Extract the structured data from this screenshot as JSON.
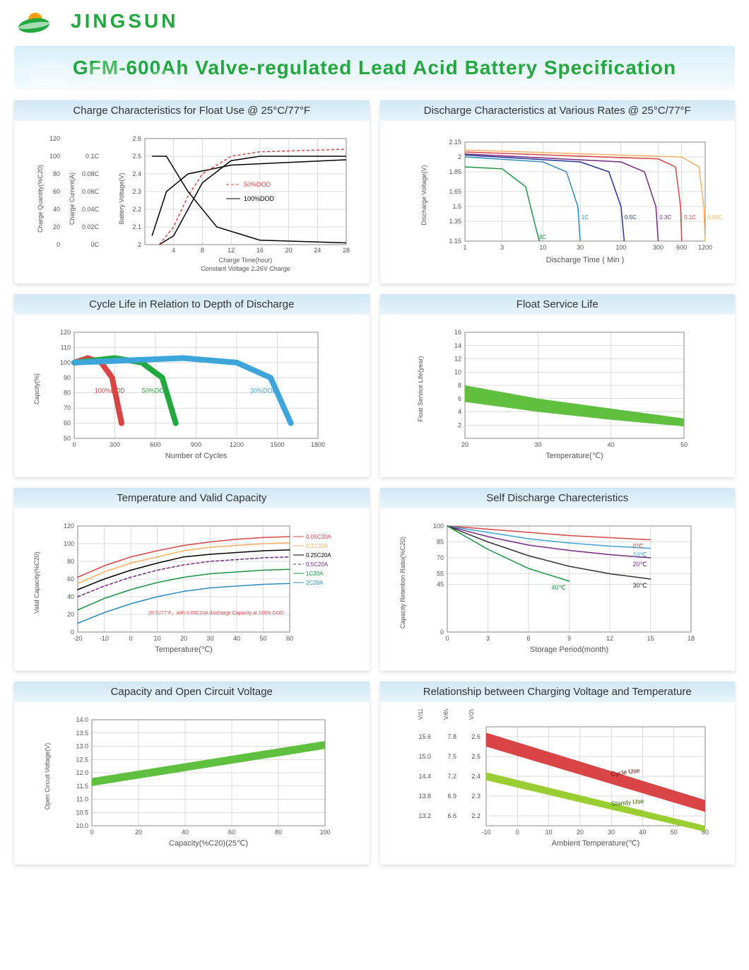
{
  "brand": "JINGSUN",
  "brand_color": "#22a83f",
  "title": "GFM-600Ah Valve-regulated Lead Acid Battery Specification",
  "title_color": "#22a83f",
  "banner_bg": "#d4f0f9",
  "panels": {
    "charge_char": {
      "title": "Charge Characteristics for Float Use @ 25°C/77°F",
      "type": "multi-axis-line",
      "x_label": "Charge Time(hour)",
      "x_sublabel": "Constant Voltage 2.26V Charge",
      "x_ticks": [
        4,
        8,
        12,
        16,
        20,
        24,
        28
      ],
      "y1_label": "Charge Quantity(%C20)",
      "y1_ticks": [
        0,
        20,
        40,
        60,
        80,
        100,
        120
      ],
      "y2_label": "Charge Current(A)",
      "y2_ticks": [
        "0C",
        "0.02C",
        "0.04C",
        "0.06C",
        "0.08C",
        "0.1C"
      ],
      "y3_label": "Battery Voltage(V)",
      "y3_ticks": [
        2.0,
        2.1,
        2.2,
        2.3,
        2.4,
        2.5,
        2.6
      ],
      "legend": [
        "50%DOD",
        "100%DOD"
      ],
      "legend_colors": [
        "#d94545",
        "#000000"
      ],
      "line_50dod_dash": "4,3",
      "curves": {
        "quantity_100": [
          [
            2,
            0
          ],
          [
            4,
            10
          ],
          [
            6,
            40
          ],
          [
            8,
            70
          ],
          [
            12,
            95
          ],
          [
            16,
            100
          ],
          [
            28,
            100
          ]
        ],
        "quantity_50": [
          [
            2,
            0
          ],
          [
            4,
            20
          ],
          [
            6,
            55
          ],
          [
            8,
            80
          ],
          [
            12,
            100
          ],
          [
            16,
            105
          ],
          [
            28,
            108
          ]
        ],
        "voltage_100": [
          [
            1,
            2.05
          ],
          [
            3,
            2.3
          ],
          [
            6,
            2.4
          ],
          [
            12,
            2.45
          ],
          [
            28,
            2.48
          ]
        ],
        "current_100": [
          [
            1,
            0.1
          ],
          [
            3,
            0.1
          ],
          [
            6,
            0.06
          ],
          [
            10,
            0.02
          ],
          [
            16,
            0.005
          ],
          [
            28,
            0.002
          ]
        ]
      }
    },
    "discharge_char": {
      "title": "Discharge Characteristics at Various Rates @ 25°C/77°F",
      "type": "line",
      "x_label": "Discharge Time ( Min )",
      "x_ticks": [
        1,
        3,
        10,
        30,
        100,
        300,
        600,
        1200
      ],
      "x_scale": "log",
      "y_label": "Discharge Voltage(V)",
      "y_ticks": [
        1.15,
        1.35,
        1.5,
        1.65,
        1.85,
        2.0,
        2.15
      ],
      "series": [
        {
          "label": "3C",
          "color": "#1a9641",
          "data": [
            [
              1,
              1.9
            ],
            [
              3,
              1.88
            ],
            [
              6,
              1.7
            ],
            [
              8,
              1.3
            ],
            [
              9,
              1.15
            ]
          ]
        },
        {
          "label": "1C",
          "color": "#2b8cbe",
          "data": [
            [
              1,
              2.0
            ],
            [
              10,
              1.95
            ],
            [
              20,
              1.85
            ],
            [
              28,
              1.5
            ],
            [
              30,
              1.15
            ]
          ]
        },
        {
          "label": "0.5C",
          "color": "#253494",
          "data": [
            [
              1,
              2.02
            ],
            [
              30,
              1.95
            ],
            [
              70,
              1.85
            ],
            [
              100,
              1.5
            ],
            [
              110,
              1.15
            ]
          ]
        },
        {
          "label": "0.3C",
          "color": "#762a83",
          "data": [
            [
              1,
              2.03
            ],
            [
              100,
              1.95
            ],
            [
              200,
              1.85
            ],
            [
              280,
              1.5
            ],
            [
              300,
              1.15
            ]
          ]
        },
        {
          "label": "0.1C",
          "color": "#d94545",
          "data": [
            [
              1,
              2.05
            ],
            [
              300,
              1.98
            ],
            [
              500,
              1.9
            ],
            [
              580,
              1.5
            ],
            [
              600,
              1.15
            ]
          ]
        },
        {
          "label": "0.05C",
          "color": "#fdae61",
          "data": [
            [
              1,
              2.07
            ],
            [
              600,
              2.0
            ],
            [
              1000,
              1.9
            ],
            [
              1150,
              1.5
            ],
            [
              1200,
              1.15
            ]
          ]
        }
      ]
    },
    "cycle_life": {
      "title": "Cycle  Life in Relation to Depth of Discharge",
      "type": "line",
      "x_label": "Number of Cycles",
      "x_ticks": [
        0,
        300,
        600,
        900,
        1200,
        1500,
        1800
      ],
      "y_label": "Capcity(%)",
      "y_ticks": [
        50,
        60,
        70,
        80,
        90,
        100,
        110,
        120
      ],
      "series": [
        {
          "label": "100%DOD",
          "color": "#d94545",
          "width": 8,
          "data": [
            [
              0,
              100
            ],
            [
              100,
              103
            ],
            [
              200,
              100
            ],
            [
              280,
              90
            ],
            [
              350,
              60
            ]
          ]
        },
        {
          "label": "50%DOD",
          "color": "#22a83f",
          "width": 8,
          "data": [
            [
              0,
              100
            ],
            [
              300,
              103
            ],
            [
              500,
              100
            ],
            [
              650,
              90
            ],
            [
              750,
              60
            ]
          ]
        },
        {
          "label": "30%DOD",
          "color": "#3da5d9",
          "width": 8,
          "data": [
            [
              0,
              100
            ],
            [
              800,
              103
            ],
            [
              1200,
              100
            ],
            [
              1450,
              90
            ],
            [
              1600,
              60
            ]
          ]
        }
      ]
    },
    "float_life": {
      "title": "Float Service Life",
      "type": "area",
      "x_label": "Temperature(℃)",
      "x_ticks": [
        20,
        30,
        40,
        50
      ],
      "y_label": "Float Service Life(year)",
      "y_ticks": [
        2,
        4,
        6,
        8,
        10,
        12,
        14,
        16
      ],
      "band_color": "#5fbf3f",
      "band_upper": [
        [
          20,
          8
        ],
        [
          30,
          6
        ],
        [
          40,
          4.5
        ],
        [
          50,
          3
        ]
      ],
      "band_lower": [
        [
          20,
          5.5
        ],
        [
          30,
          4
        ],
        [
          40,
          2.8
        ],
        [
          50,
          1.8
        ]
      ]
    },
    "temp_capacity": {
      "title": "Temperature and Valid Capacity",
      "type": "line",
      "x_label": "Temperature(℃)",
      "x_ticks": [
        -20,
        -10,
        0,
        10,
        20,
        30,
        40,
        50,
        60
      ],
      "y_label": "Valid Capacity(%C20)",
      "y_ticks": [
        0,
        20,
        40,
        60,
        80,
        100,
        120
      ],
      "note": "25°C/77°F，with 0.05C20A discharge Capacity at 100% DOD",
      "note_color": "#d94545",
      "series": [
        {
          "label": "0.05C20A",
          "color": "#d94545",
          "data": [
            [
              -20,
              62
            ],
            [
              -10,
              75
            ],
            [
              0,
              85
            ],
            [
              10,
              92
            ],
            [
              20,
              98
            ],
            [
              30,
              102
            ],
            [
              40,
              105
            ],
            [
              50,
              107
            ],
            [
              60,
              108
            ]
          ]
        },
        {
          "label": "0.1C20A",
          "color": "#fdae61",
          "data": [
            [
              -20,
              55
            ],
            [
              -10,
              68
            ],
            [
              0,
              78
            ],
            [
              10,
              85
            ],
            [
              20,
              92
            ],
            [
              30,
              96
            ],
            [
              40,
              98
            ],
            [
              50,
              100
            ],
            [
              60,
              101
            ]
          ]
        },
        {
          "label": "0.25C20A",
          "color": "#000",
          "data": [
            [
              -20,
              48
            ],
            [
              -10,
              60
            ],
            [
              0,
              70
            ],
            [
              10,
              78
            ],
            [
              20,
              85
            ],
            [
              30,
              88
            ],
            [
              40,
              90
            ],
            [
              50,
              92
            ],
            [
              60,
              93
            ]
          ]
        },
        {
          "label": "0.5C20A",
          "color": "#762a83",
          "dash": "4,3",
          "data": [
            [
              -20,
              40
            ],
            [
              -10,
              52
            ],
            [
              0,
              62
            ],
            [
              10,
              70
            ],
            [
              20,
              76
            ],
            [
              30,
              80
            ],
            [
              40,
              82
            ],
            [
              50,
              84
            ],
            [
              60,
              85
            ]
          ]
        },
        {
          "label": "1C20A",
          "color": "#1a9641",
          "data": [
            [
              -20,
              25
            ],
            [
              -10,
              38
            ],
            [
              0,
              48
            ],
            [
              10,
              56
            ],
            [
              20,
              62
            ],
            [
              30,
              66
            ],
            [
              40,
              68
            ],
            [
              50,
              70
            ],
            [
              60,
              71
            ]
          ]
        },
        {
          "label": "2C20A",
          "color": "#2b8cbe",
          "data": [
            [
              -20,
              10
            ],
            [
              -10,
              22
            ],
            [
              0,
              32
            ],
            [
              10,
              40
            ],
            [
              20,
              46
            ],
            [
              30,
              50
            ],
            [
              40,
              52
            ],
            [
              50,
              54
            ],
            [
              60,
              55
            ]
          ]
        }
      ]
    },
    "self_discharge": {
      "title": "Self Discharge Charecteristics",
      "type": "line",
      "x_label": "Storage Period(month)",
      "x_ticks": [
        0,
        3,
        6,
        9,
        12,
        15,
        18
      ],
      "y_label": "Capacity Retention Ratio(%C20)",
      "y_ticks": [
        0,
        45,
        55,
        70,
        85,
        100
      ],
      "series": [
        {
          "label": "0℃",
          "color": "#d94545",
          "data": [
            [
              0,
              100
            ],
            [
              3,
              97
            ],
            [
              6,
              94
            ],
            [
              9,
              91
            ],
            [
              12,
              89
            ],
            [
              15,
              87
            ]
          ]
        },
        {
          "label": "10℃",
          "color": "#3da5d9",
          "data": [
            [
              0,
              100
            ],
            [
              3,
              94
            ],
            [
              6,
              88
            ],
            [
              9,
              84
            ],
            [
              12,
              81
            ],
            [
              15,
              79
            ]
          ]
        },
        {
          "label": "20℃",
          "color": "#762a83",
          "data": [
            [
              0,
              100
            ],
            [
              3,
              90
            ],
            [
              6,
              82
            ],
            [
              9,
              77
            ],
            [
              12,
              73
            ],
            [
              15,
              70
            ]
          ]
        },
        {
          "label": "30℃",
          "color": "#333",
          "data": [
            [
              0,
              100
            ],
            [
              3,
              85
            ],
            [
              6,
              72
            ],
            [
              9,
              62
            ],
            [
              12,
              55
            ],
            [
              15,
              50
            ]
          ]
        },
        {
          "label": "40℃",
          "color": "#1a9641",
          "data": [
            [
              0,
              100
            ],
            [
              3,
              78
            ],
            [
              6,
              60
            ],
            [
              9,
              48
            ]
          ]
        }
      ]
    },
    "capacity_ocv": {
      "title": "Capacity and Open Circuit Voltage",
      "type": "area",
      "x_label": "Capacity(%C20)(25℃)",
      "x_ticks": [
        0,
        20,
        40,
        60,
        80,
        100
      ],
      "y_label": "Open Circuit Voltage(V)",
      "y_ticks": [
        10.0,
        10.5,
        11.0,
        11.5,
        12.0,
        12.5,
        13.0,
        13.5,
        14.0
      ],
      "band_color": "#5fbf3f",
      "band_upper": [
        [
          0,
          11.8
        ],
        [
          100,
          13.2
        ]
      ],
      "band_lower": [
        [
          0,
          11.5
        ],
        [
          100,
          12.9
        ]
      ]
    },
    "charge_voltage_temp": {
      "title": "Relationship between Charging Voltage and Temperature",
      "type": "multi-band",
      "x_label": "Ambient Temperature(℃)",
      "x_ticks": [
        -10,
        0,
        10,
        20,
        30,
        40,
        50,
        60
      ],
      "y_labels": [
        "V/12V",
        "V/6V",
        "V/2V"
      ],
      "y1_ticks": [
        13.2,
        13.8,
        14.4,
        15.0,
        15.6
      ],
      "y2_ticks": [
        6.6,
        6.9,
        7.2,
        7.5,
        7.8
      ],
      "y3_ticks": [
        2.2,
        2.3,
        2.4,
        2.5,
        2.6
      ],
      "bands": [
        {
          "label": "Cycle Use",
          "color": "#d94545",
          "upper": [
            [
              -10,
              2.62
            ],
            [
              60,
              2.28
            ]
          ],
          "lower": [
            [
              -10,
              2.55
            ],
            [
              60,
              2.22
            ]
          ]
        },
        {
          "label": "Standy Use",
          "color": "#9acd32",
          "upper": [
            [
              -10,
              2.42
            ],
            [
              60,
              2.15
            ]
          ],
          "lower": [
            [
              -10,
              2.38
            ],
            [
              60,
              2.12
            ]
          ]
        }
      ]
    }
  }
}
